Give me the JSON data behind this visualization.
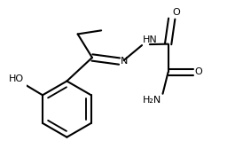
{
  "bg_color": "#ffffff",
  "line_color": "#000000",
  "line_width": 1.5,
  "font_size": 8.0,
  "fig_width": 2.65,
  "fig_height": 1.85,
  "dpi": 100,
  "xlim": [
    0.0,
    1.0
  ],
  "ylim": [
    0.05,
    0.95
  ]
}
